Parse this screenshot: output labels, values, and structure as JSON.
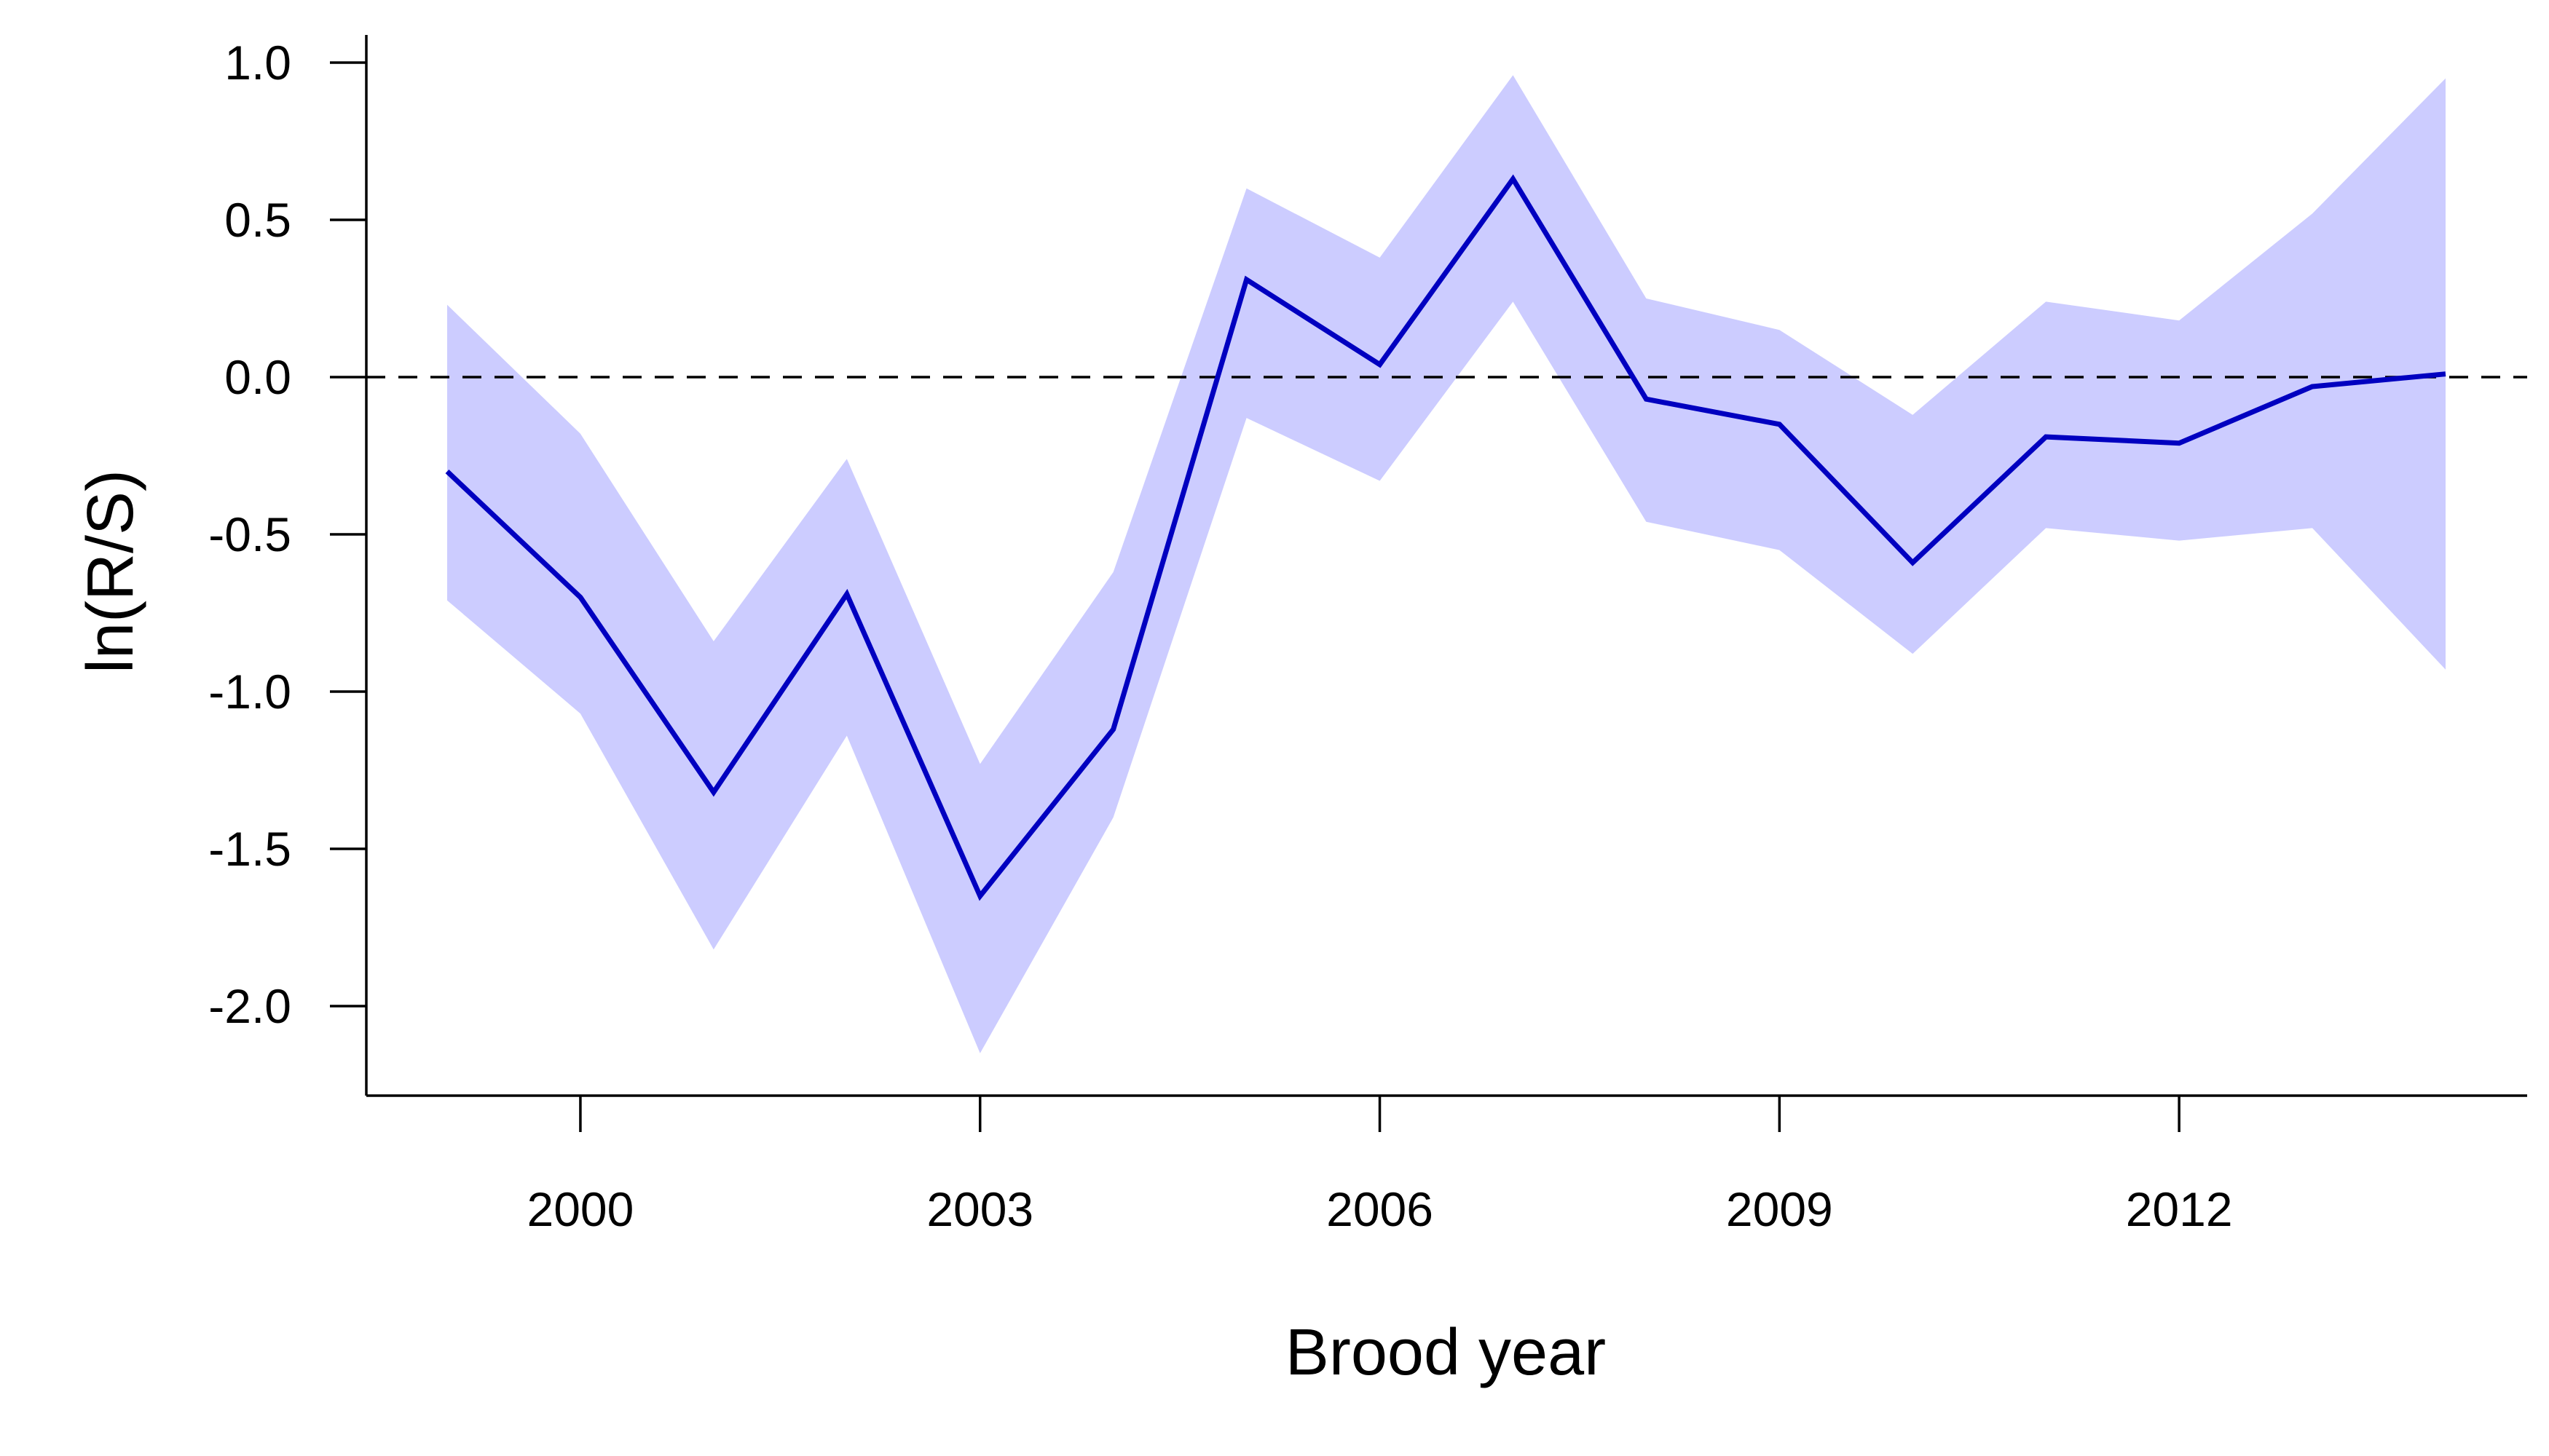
{
  "chart_data": {
    "type": "line",
    "title": "",
    "xlabel": "Brood year",
    "ylabel": "ln(R/S)",
    "xlim": [
      1998.4,
      2014.6
    ],
    "ylim": [
      -2.3,
      1.1
    ],
    "x_ticks": [
      2000,
      2003,
      2006,
      2009,
      2012
    ],
    "x_tick_labels": [
      "2000",
      "2003",
      "2006",
      "2009",
      "2012"
    ],
    "y_ticks": [
      1.0,
      0.5,
      0.0,
      -0.5,
      -1.0,
      -1.5,
      -2.0
    ],
    "y_tick_labels": [
      "1.0",
      "0.5",
      "0.0",
      "-0.5",
      "-1.0",
      "-1.5",
      "-2.0"
    ],
    "reference_line": {
      "y": 0,
      "style": "dashed"
    },
    "x": [
      1999,
      2000,
      2001,
      2002,
      2003,
      2004,
      2005,
      2006,
      2007,
      2008,
      2009,
      2010,
      2011,
      2012,
      2013,
      2014
    ],
    "series": [
      {
        "values": [
          -0.3,
          -0.7,
          -1.32,
          -0.69,
          -1.65,
          -1.12,
          0.31,
          0.04,
          0.63,
          -0.07,
          -0.15,
          -0.59,
          -0.19,
          -0.21,
          -0.03,
          0.01
        ],
        "lower": [
          -0.71,
          -1.07,
          -1.82,
          -1.14,
          -2.15,
          -1.4,
          -0.13,
          -0.33,
          0.24,
          -0.46,
          -0.55,
          -0.88,
          -0.48,
          -0.52,
          -0.48,
          -0.93
        ],
        "upper": [
          0.23,
          -0.18,
          -0.84,
          -0.26,
          -1.23,
          -0.62,
          0.6,
          0.38,
          0.96,
          0.25,
          0.15,
          -0.12,
          0.24,
          0.18,
          0.52,
          0.95
        ]
      }
    ],
    "colors": {
      "line": "#0000c0",
      "band": "#ccccff",
      "axis": "#000000",
      "reference": "#000000"
    },
    "grid": false,
    "legend": "none"
  }
}
